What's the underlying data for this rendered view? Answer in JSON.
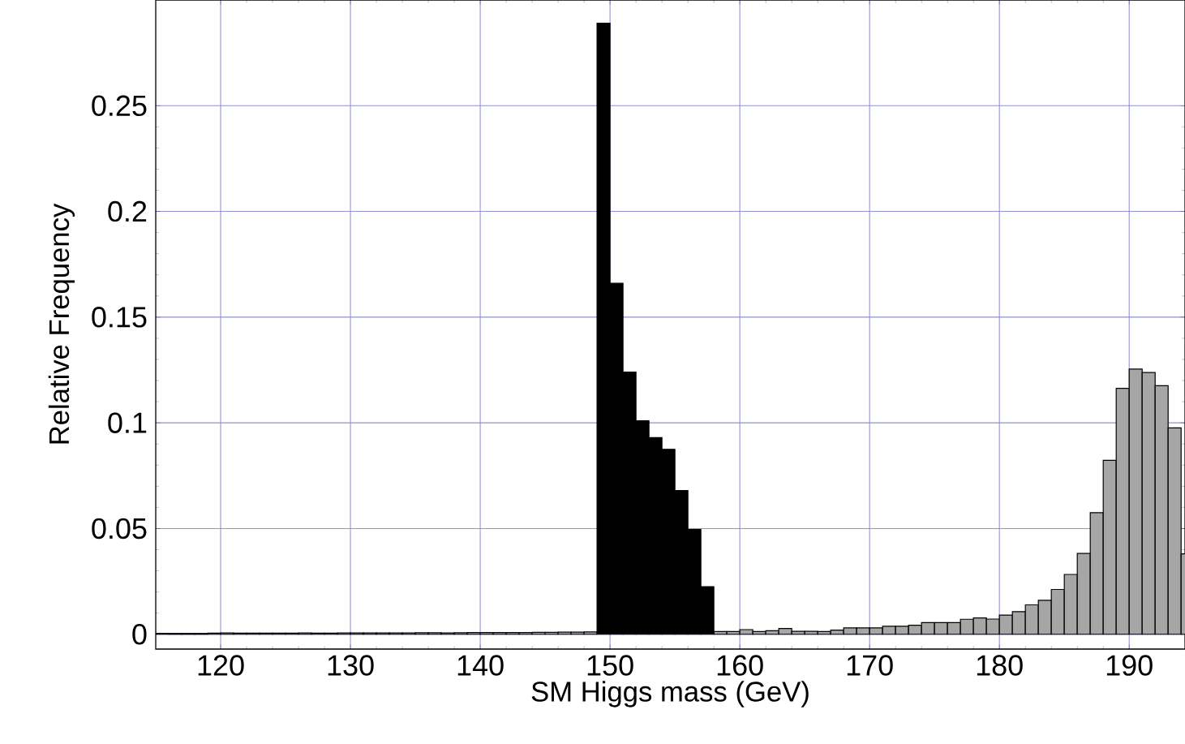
{
  "chart_data": {
    "type": "histogram",
    "xlabel": "SM Higgs mass (GeV)",
    "ylabel": "Relative Frequency",
    "bins": [
      115,
      116,
      117,
      118,
      119,
      120,
      121,
      122,
      123,
      124,
      125,
      126,
      127,
      128,
      129,
      130,
      131,
      132,
      133,
      134,
      135,
      136,
      137,
      138,
      139,
      140,
      141,
      142,
      143,
      144,
      145,
      146,
      147,
      148,
      149,
      150,
      151,
      152,
      153,
      154,
      155,
      156,
      157,
      158,
      159,
      160,
      161,
      162,
      163,
      164,
      165,
      166,
      167,
      168,
      169,
      170,
      171,
      172,
      173,
      174,
      175,
      176,
      177,
      178,
      179,
      180,
      181,
      182,
      183,
      184,
      185,
      186,
      187,
      188,
      189,
      190,
      191,
      192,
      193,
      194,
      195
    ],
    "series": [
      {
        "color": "#a6a6a6",
        "values": [
          0.0004,
          0.0004,
          0.0004,
          0.0004,
          0.0005,
          0.0006,
          0.0005,
          0.0005,
          0.0005,
          0.0005,
          0.0005,
          0.0006,
          0.0005,
          0.0005,
          0.0006,
          0.0006,
          0.0006,
          0.0006,
          0.0006,
          0.0006,
          0.0007,
          0.0007,
          0.0006,
          0.0007,
          0.0008,
          0.0008,
          0.0008,
          0.0008,
          0.0008,
          0.0009,
          0.0009,
          0.001,
          0.001,
          0.0011,
          null,
          null,
          null,
          null,
          null,
          null,
          null,
          null,
          null,
          0.0013,
          0.0013,
          0.0022,
          0.0013,
          0.0017,
          0.0027,
          0.0014,
          0.0014,
          0.0013,
          0.002,
          0.003,
          0.003,
          0.003,
          0.0038,
          0.0038,
          0.0043,
          0.0055,
          0.0055,
          0.0055,
          0.0071,
          0.0077,
          0.0072,
          0.0091,
          0.0107,
          0.0139,
          0.0161,
          0.0212,
          0.0283,
          0.0382,
          0.0575,
          0.0823,
          0.1163,
          0.1254,
          0.1238,
          0.1176,
          0.0976,
          0.038
        ]
      },
      {
        "color": "#000000",
        "values": [
          null,
          null,
          null,
          null,
          null,
          null,
          null,
          null,
          null,
          null,
          null,
          null,
          null,
          null,
          null,
          null,
          null,
          null,
          null,
          null,
          null,
          null,
          null,
          null,
          null,
          null,
          null,
          null,
          null,
          null,
          null,
          null,
          null,
          null,
          0.289,
          0.166,
          0.124,
          0.101,
          0.093,
          0.0875,
          0.068,
          0.0496,
          0.0225,
          null,
          null,
          null,
          null,
          null,
          null,
          null,
          null,
          null,
          null,
          null,
          null,
          null,
          null,
          null,
          null,
          null,
          null,
          null,
          null,
          null,
          null,
          null,
          null,
          null,
          null,
          null,
          null,
          null,
          null,
          null,
          null,
          null,
          null,
          null,
          null,
          null
        ]
      }
    ],
    "xlim": [
      115,
      194.3
    ],
    "ylim": [
      -0.007,
      0.3
    ],
    "xticks": [
      120,
      130,
      140,
      150,
      160,
      170,
      180,
      190
    ],
    "yticks": [
      0,
      0.05,
      0.1,
      0.15,
      0.2,
      0.25
    ],
    "grid": true
  }
}
